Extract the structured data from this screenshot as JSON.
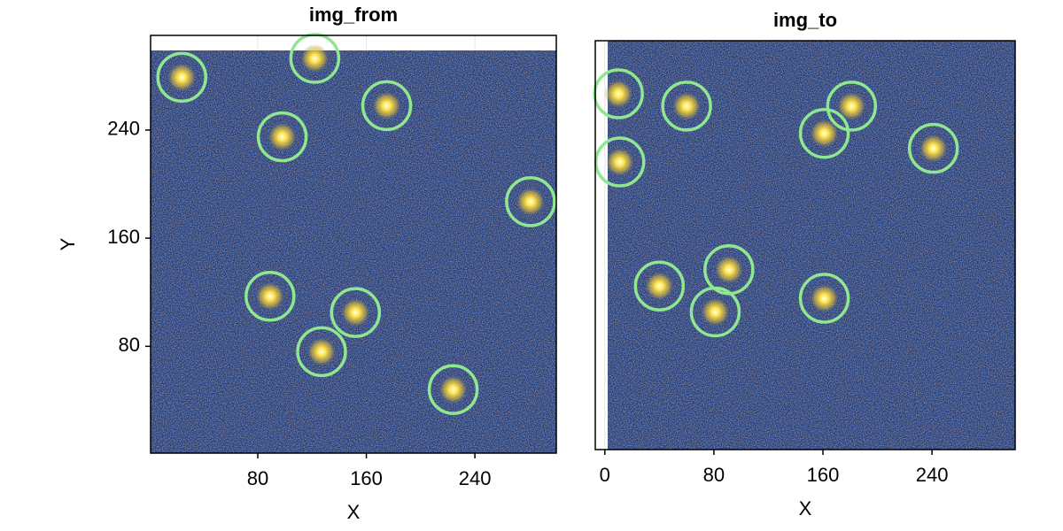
{
  "chart_data": [
    {
      "type": "scatter",
      "title": "img_from",
      "x_label": "X",
      "y_label": "Y",
      "xlim": [
        1,
        300
      ],
      "ylim": [
        1,
        310
      ],
      "xticks": [
        80,
        160,
        240
      ],
      "yticks": [
        80,
        160,
        240
      ],
      "grid": true,
      "color": "#8fe88f",
      "series": [
        {
          "x": [
            24,
            122,
            175,
            98,
            281,
            89,
            152,
            127,
            224
          ],
          "values": [
            279,
            293,
            258,
            235,
            187,
            117,
            105,
            76,
            48
          ]
        }
      ]
    },
    {
      "type": "scatter",
      "title": "img_to",
      "x_label": "X",
      "xlim": [
        -7,
        301
      ],
      "ylim": [
        1,
        301
      ],
      "xticks": [
        0,
        80,
        160,
        240
      ],
      "grid": true,
      "color": "#8fe88f",
      "series": [
        {
          "x": [
            10,
            11,
            60,
            181,
            161,
            241,
            91,
            40,
            81,
            161
          ],
          "values": [
            262,
            212,
            253,
            253,
            233,
            222,
            133,
            121,
            102,
            112
          ]
        }
      ]
    }
  ]
}
